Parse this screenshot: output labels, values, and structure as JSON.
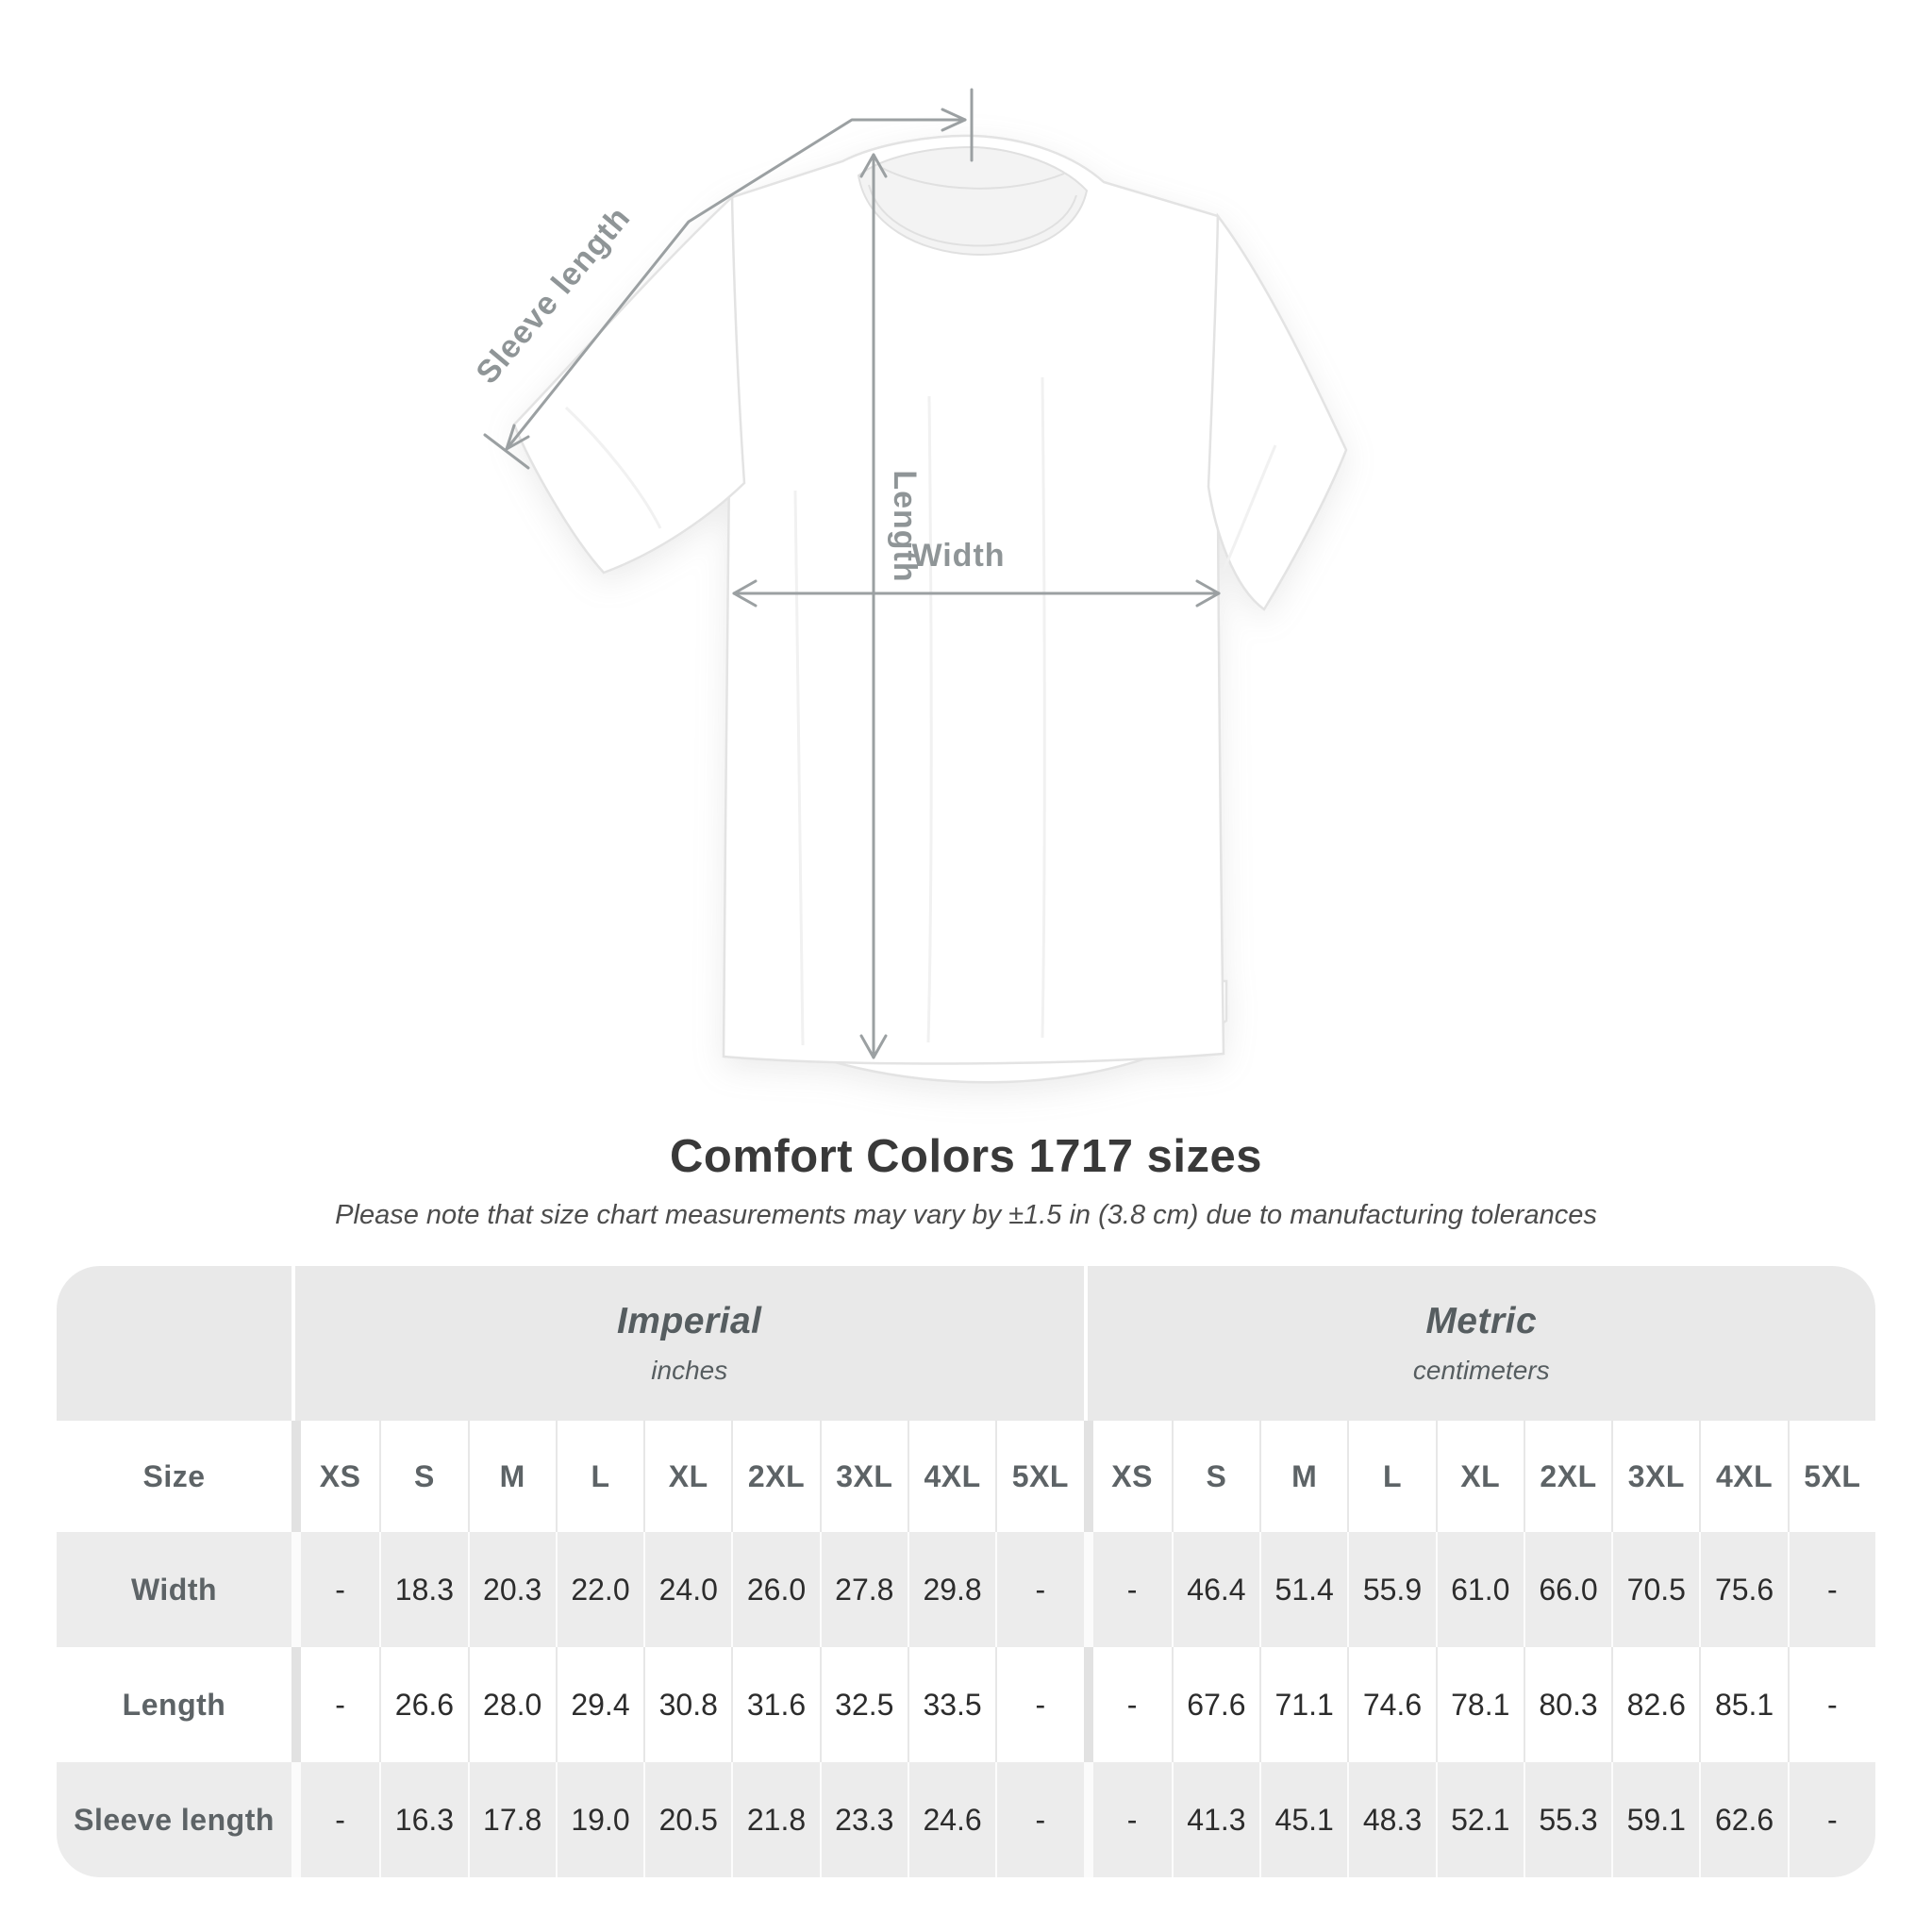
{
  "diagram": {
    "sleeve_label": "Sleeve length",
    "length_label": "Length",
    "width_label": "Width"
  },
  "header": {
    "title": "Comfort Colors 1717 sizes",
    "subtitle": "Please note that size chart measurements may vary by ±1.5 in (3.8 cm) due to manufacturing tolerances"
  },
  "table": {
    "size_header": "Size",
    "groups": [
      {
        "name": "Imperial",
        "unit": "inches"
      },
      {
        "name": "Metric",
        "unit": "centimeters"
      }
    ],
    "sizes": [
      "XS",
      "S",
      "M",
      "L",
      "XL",
      "2XL",
      "3XL",
      "4XL",
      "5XL"
    ],
    "rows": [
      {
        "label": "Width",
        "imperial": [
          "-",
          "18.3",
          "20.3",
          "22.0",
          "24.0",
          "26.0",
          "27.8",
          "29.8",
          "-"
        ],
        "metric": [
          "-",
          "46.4",
          "51.4",
          "55.9",
          "61.0",
          "66.0",
          "70.5",
          "75.6",
          "-"
        ]
      },
      {
        "label": "Length",
        "imperial": [
          "-",
          "26.6",
          "28.0",
          "29.4",
          "30.8",
          "31.6",
          "32.5",
          "33.5",
          "-"
        ],
        "metric": [
          "-",
          "67.6",
          "71.1",
          "74.6",
          "78.1",
          "80.3",
          "82.6",
          "85.1",
          "-"
        ]
      },
      {
        "label": "Sleeve length",
        "imperial": [
          "-",
          "16.3",
          "17.8",
          "19.0",
          "20.5",
          "21.8",
          "23.3",
          "24.6",
          "-"
        ],
        "metric": [
          "-",
          "41.3",
          "45.1",
          "48.3",
          "52.1",
          "55.3",
          "59.1",
          "62.6",
          "-"
        ]
      }
    ]
  },
  "colors": {
    "annotation_line": "#9ba0a2",
    "annotation_text": "#8f9597",
    "header_band_gray": "#e9e9e9",
    "row_stripe_gray": "#ececec",
    "table_label_text": "#5d6366",
    "table_value_text": "#2c2c2c"
  }
}
